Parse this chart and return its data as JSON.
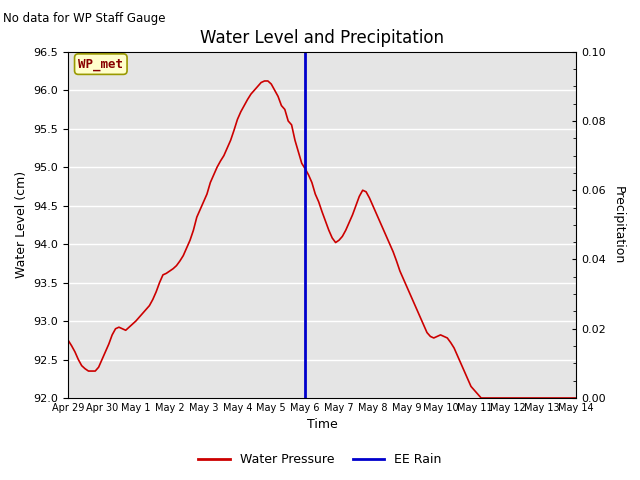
{
  "title": "Water Level and Precipitation",
  "top_left_text": "No data for WP Staff Gauge",
  "xlabel": "Time",
  "ylabel_left": "Water Level (cm)",
  "ylabel_right": "Precipitation",
  "legend_label_red": "Water Pressure",
  "legend_label_blue": "EE Rain",
  "inset_label": "WP_met",
  "ylim_left": [
    92.0,
    96.5
  ],
  "ylim_right": [
    0.0,
    0.1
  ],
  "yticks_left": [
    92.0,
    92.5,
    93.0,
    93.5,
    94.0,
    94.5,
    95.0,
    95.5,
    96.0,
    96.5
  ],
  "yticks_right": [
    0.0,
    0.02,
    0.04,
    0.06,
    0.08,
    0.1
  ],
  "vline_x": 7.0,
  "bg_color": "#e5e5e5",
  "line_color_red": "#cc0000",
  "line_color_blue": "#0000cc",
  "inset_bg": "#ffffcc",
  "inset_border": "#999900",
  "inset_text_color": "#880000",
  "x_values": [
    0.0,
    0.1,
    0.2,
    0.3,
    0.4,
    0.5,
    0.6,
    0.7,
    0.8,
    0.9,
    1.0,
    1.1,
    1.2,
    1.3,
    1.4,
    1.5,
    1.6,
    1.7,
    1.8,
    1.9,
    2.0,
    2.1,
    2.2,
    2.3,
    2.4,
    2.5,
    2.6,
    2.7,
    2.8,
    2.9,
    3.0,
    3.1,
    3.2,
    3.3,
    3.4,
    3.5,
    3.6,
    3.7,
    3.8,
    3.9,
    4.0,
    4.1,
    4.2,
    4.3,
    4.4,
    4.5,
    4.6,
    4.7,
    4.8,
    4.9,
    5.0,
    5.1,
    5.2,
    5.3,
    5.4,
    5.5,
    5.6,
    5.7,
    5.8,
    5.9,
    6.0,
    6.1,
    6.2,
    6.3,
    6.4,
    6.5,
    6.6,
    6.7,
    6.8,
    6.9,
    7.0,
    7.1,
    7.2,
    7.3,
    7.4,
    7.5,
    7.6,
    7.7,
    7.8,
    7.9,
    8.0,
    8.1,
    8.2,
    8.3,
    8.4,
    8.5,
    8.6,
    8.7,
    8.8,
    8.9,
    9.0,
    9.1,
    9.2,
    9.3,
    9.4,
    9.5,
    9.6,
    9.7,
    9.8,
    9.9,
    10.0,
    10.1,
    10.2,
    10.3,
    10.4,
    10.5,
    10.6,
    10.7,
    10.8,
    10.9,
    11.0,
    11.1,
    11.2,
    11.3,
    11.4,
    11.5,
    11.6,
    11.7,
    11.8,
    11.9,
    12.0,
    12.1,
    12.2,
    12.3,
    12.4,
    12.5,
    12.6,
    12.7,
    12.8,
    12.9,
    13.0,
    13.1,
    13.2,
    13.3,
    13.4,
    13.5,
    13.6,
    13.7,
    13.8,
    13.9,
    14.0,
    14.1,
    14.2,
    14.3,
    14.4,
    14.5,
    14.6,
    14.7,
    14.8,
    14.9,
    15.0
  ],
  "y_values": [
    92.75,
    92.68,
    92.6,
    92.5,
    92.42,
    92.38,
    92.35,
    92.35,
    92.35,
    92.4,
    92.5,
    92.6,
    92.7,
    92.82,
    92.9,
    92.92,
    92.9,
    92.88,
    92.92,
    92.96,
    93.0,
    93.05,
    93.1,
    93.15,
    93.2,
    93.28,
    93.38,
    93.5,
    93.6,
    93.62,
    93.65,
    93.68,
    93.72,
    93.78,
    93.85,
    93.95,
    94.05,
    94.18,
    94.35,
    94.45,
    94.55,
    94.65,
    94.8,
    94.9,
    95.0,
    95.08,
    95.15,
    95.25,
    95.35,
    95.48,
    95.62,
    95.72,
    95.8,
    95.88,
    95.95,
    96.0,
    96.05,
    96.1,
    96.12,
    96.12,
    96.08,
    96.0,
    95.92,
    95.8,
    95.75,
    95.6,
    95.55,
    95.35,
    95.2,
    95.05,
    94.98,
    94.9,
    94.8,
    94.65,
    94.55,
    94.42,
    94.3,
    94.18,
    94.08,
    94.02,
    94.05,
    94.1,
    94.18,
    94.28,
    94.38,
    94.5,
    94.62,
    94.7,
    94.68,
    94.6,
    94.5,
    94.4,
    94.3,
    94.2,
    94.1,
    94.0,
    93.9,
    93.78,
    93.65,
    93.55,
    93.45,
    93.35,
    93.25,
    93.15,
    93.05,
    92.95,
    92.85,
    92.8,
    92.78,
    92.8,
    92.82,
    92.8,
    92.78,
    92.72,
    92.65,
    92.55,
    92.45,
    92.35,
    92.25,
    92.15,
    92.1,
    92.05,
    92.0,
    92.0,
    92.0,
    92.0,
    92.0,
    92.0,
    92.0,
    92.0,
    92.0,
    92.0,
    92.0,
    92.0,
    92.0,
    92.0,
    92.0,
    92.0,
    92.0,
    92.0,
    92.0,
    92.0,
    92.0,
    92.0,
    92.0,
    92.0,
    92.0,
    92.0,
    92.0,
    92.0,
    92.0
  ],
  "xtick_positions": [
    0,
    1,
    2,
    3,
    4,
    5,
    6,
    7,
    8,
    9,
    10,
    11,
    12,
    13,
    14,
    15
  ],
  "xtick_labels": [
    "Apr 29",
    "Apr 30",
    "May 1",
    "May 2",
    "May 3",
    "May 4",
    "May 5",
    "May 6",
    "May 7",
    "May 8",
    "May 9",
    "May 10",
    "May 11",
    "May 12",
    "May 13",
    "May 14"
  ]
}
